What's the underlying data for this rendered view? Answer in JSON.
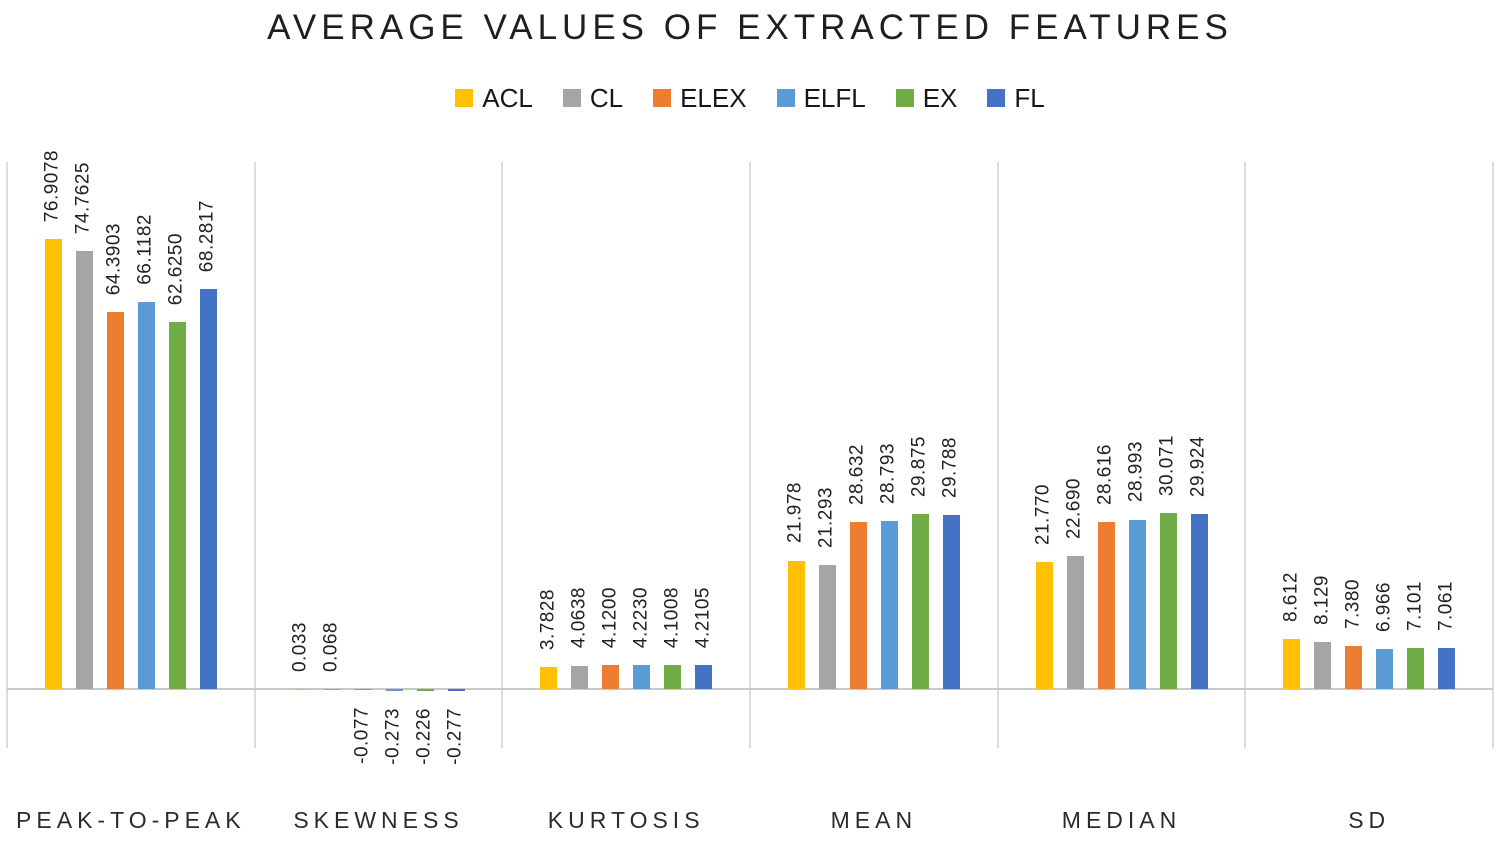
{
  "chart_data": {
    "type": "bar",
    "title": "AVERAGE VALUES OF EXTRACTED FEATURES",
    "categories": [
      "PEAK-TO-PEAK",
      "SKEWNESS",
      "KURTOSIS",
      "MEAN",
      "MEDIAN",
      "SD"
    ],
    "series": [
      {
        "name": "ACL",
        "color": "#FFC000",
        "pattern": "solid",
        "values": [
          76.9078,
          0.033,
          3.7828,
          21.978,
          21.77,
          8.612
        ],
        "labels": [
          "76.9078",
          "0.033",
          "3.7828",
          "21.978",
          "21.770",
          "8.612"
        ]
      },
      {
        "name": "CL",
        "color": "#A5A5A5",
        "pattern": "dots",
        "values": [
          74.7625,
          0.068,
          4.0638,
          21.293,
          22.69,
          8.129
        ],
        "labels": [
          "74.7625",
          "0.068",
          "4.0638",
          "21.293",
          "22.690",
          "8.129"
        ]
      },
      {
        "name": "ELEX",
        "color": "#ED7D31",
        "pattern": "solid",
        "values": [
          64.3903,
          -0.077,
          4.12,
          28.632,
          28.616,
          7.38
        ],
        "labels": [
          "64.3903",
          "-0.077",
          "4.1200",
          "28.632",
          "28.616",
          "7.380"
        ]
      },
      {
        "name": "ELFL",
        "color": "#5B9BD5",
        "pattern": "dots",
        "values": [
          66.1182,
          -0.273,
          4.223,
          28.793,
          28.993,
          6.966
        ],
        "labels": [
          "66.1182",
          "-0.273",
          "4.2230",
          "28.793",
          "28.993",
          "6.966"
        ]
      },
      {
        "name": "EX",
        "color": "#70AD47",
        "pattern": "solid",
        "values": [
          62.625,
          -0.226,
          4.1008,
          29.875,
          30.071,
          7.101
        ],
        "labels": [
          "62.6250",
          "-0.226",
          "4.1008",
          "29.875",
          "30.071",
          "7.101"
        ]
      },
      {
        "name": "FL",
        "color": "#4472C4",
        "pattern": "solid",
        "values": [
          68.2817,
          -0.277,
          4.2105,
          29.788,
          29.924,
          7.061
        ],
        "labels": [
          "68.2817",
          "-0.277",
          "4.2105",
          "29.788",
          "29.924",
          "7.061"
        ]
      }
    ],
    "ylim": [
      -10,
      90
    ],
    "legend_position": "top",
    "grid": "vertical-category-separators",
    "axis_line_color": "#c9c9c9",
    "separator_color": "#dcdcdc",
    "label_color": "#212121"
  }
}
